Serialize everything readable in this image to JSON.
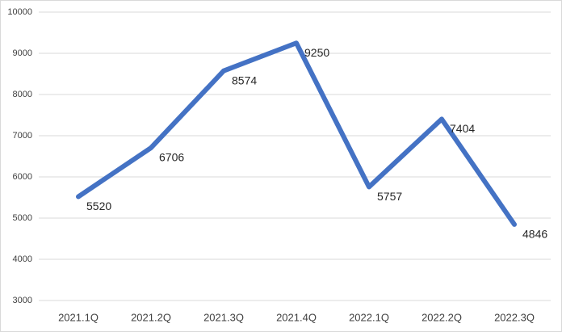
{
  "chart_data": {
    "type": "line",
    "categories": [
      "2021.1Q",
      "2021.2Q",
      "2021.3Q",
      "2021.4Q",
      "2022.1Q",
      "2022.2Q",
      "2022.3Q"
    ],
    "values": [
      5520,
      6706,
      8574,
      9250,
      5757,
      7404,
      4846
    ],
    "color": "#4472c4",
    "ylim": [
      3000,
      10000
    ],
    "yticks": [
      3000,
      4000,
      5000,
      6000,
      7000,
      8000,
      9000,
      10000
    ],
    "grid": true
  }
}
